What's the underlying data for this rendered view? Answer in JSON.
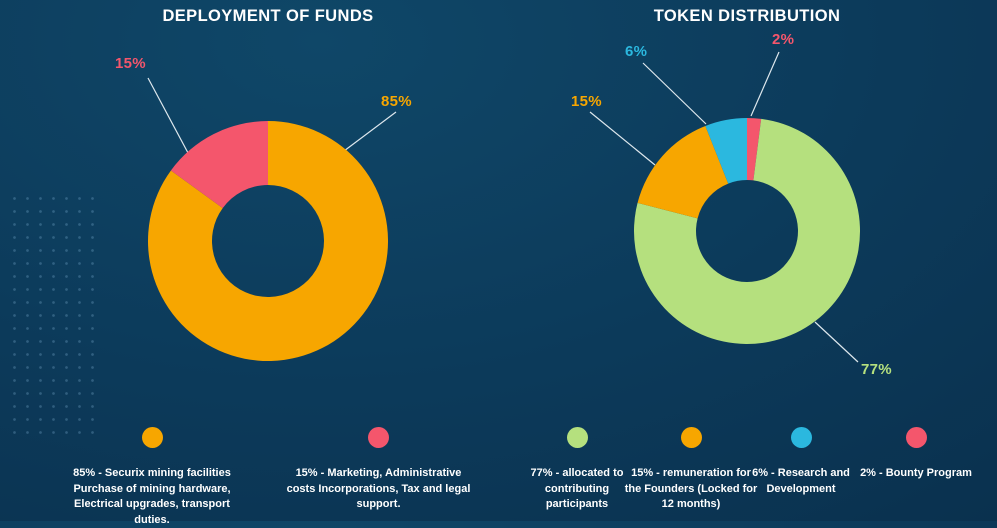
{
  "page": {
    "bg_inner": "#0F4768",
    "bg_mid": "#0C3A5A",
    "bg_outer": "#092C48",
    "callout_line_color": "#F0F6FA"
  },
  "chart_data": [
    {
      "type": "pie",
      "variant": "donut",
      "title": "DEPLOYMENT OF FUNDS",
      "legend_position": "bottom",
      "slices": [
        {
          "label": "85%",
          "value": 85,
          "color": "#F7A600"
        },
        {
          "label": "15%",
          "value": 15,
          "color": "#F4566C"
        }
      ],
      "legend": [
        {
          "color": "#F7A600",
          "text": "85% - Securix mining facilities Purchase of mining hardware, Electrical upgrades, transport duties."
        },
        {
          "color": "#F4566C",
          "text": "15% - Marketing, Administrative costs Incorporations, Tax and legal support."
        }
      ]
    },
    {
      "type": "pie",
      "variant": "donut",
      "title": "TOKEN DISTRIBUTION",
      "legend_position": "bottom",
      "slices": [
        {
          "label": "2%",
          "value": 2,
          "color": "#F4566C"
        },
        {
          "label": "77%",
          "value": 77,
          "color": "#B5E07E"
        },
        {
          "label": "15%",
          "value": 15,
          "color": "#F7A600"
        },
        {
          "label": "6%",
          "value": 6,
          "color": "#2BB8DF"
        }
      ],
      "legend": [
        {
          "color": "#B5E07E",
          "text": "77% - allocated to contributing participants"
        },
        {
          "color": "#F7A600",
          "text": "15% - remuneration for the Founders (Locked for 12 months)"
        },
        {
          "color": "#2BB8DF",
          "text": "6% - Research and Development"
        },
        {
          "color": "#F4566C",
          "text": "2% - Bounty Program"
        }
      ]
    }
  ]
}
